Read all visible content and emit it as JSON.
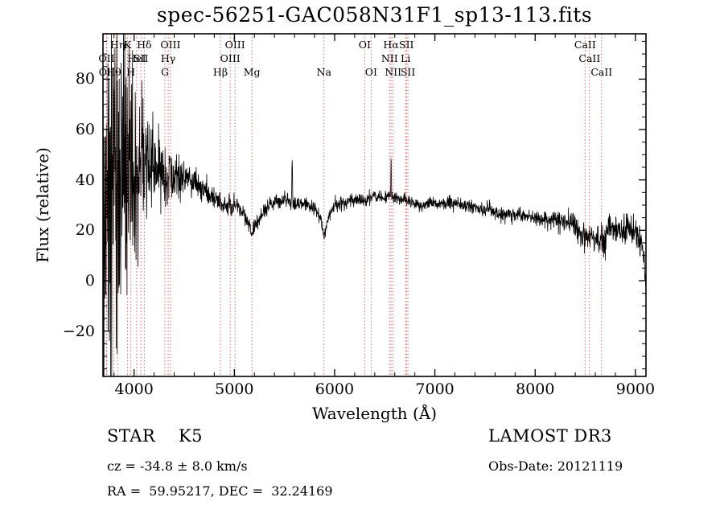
{
  "info": {
    "class_label": "STAR    K5",
    "survey": "LAMOST DR3",
    "cz": "cz = -34.8 ± 8.0 km/s",
    "obs_date": "Obs-Date: 20121119",
    "radec": "RA =  59.95217, DEC =  32.24169"
  },
  "chart_data": {
    "type": "line",
    "title": "spec-56251-GAC058N31F1_sp13-113.fits",
    "xlabel": "Wavelength (Å)",
    "ylabel": "Flux (relative)",
    "xlim": [
      3690,
      9105
    ],
    "ylim": [
      -38,
      98
    ],
    "xticks": [
      4000,
      5000,
      6000,
      7000,
      8000,
      9000
    ],
    "yticks": [
      -20,
      0,
      20,
      40,
      60,
      80
    ],
    "x_minor_step": 200,
    "y_minor_step": 5,
    "grid": false,
    "legend": "none",
    "series_color": "#000000",
    "marker_line_color": "#cc5555",
    "noise_seed": 20121119,
    "wavelength_step": 2.5,
    "data_range": [
      3692,
      9105
    ],
    "line_markers": [
      {
        "wavelength": 3726.0,
        "label": "OII",
        "row": 1
      },
      {
        "wavelength": 3728.8,
        "label": "OII",
        "row": 2
      },
      {
        "wavelength": 3797.9,
        "label": "Hθ",
        "row": 2
      },
      {
        "wavelength": 3835.4,
        "label": "Hη",
        "row": 0
      },
      {
        "wavelength": 3933.7,
        "label": "K",
        "row": 0
      },
      {
        "wavelength": 3968.5,
        "label": "H",
        "row": 2
      },
      {
        "wavelength": 4026.2,
        "label": "HeI",
        "row": 1
      },
      {
        "wavelength": 4068.6,
        "label": "SII",
        "row": 1
      },
      {
        "wavelength": 4101.7,
        "label": "Hδ",
        "row": 0
      },
      {
        "wavelength": 4307.7,
        "label": "G",
        "row": 2
      },
      {
        "wavelength": 4340.5,
        "label": "Hγ",
        "row": 1
      },
      {
        "wavelength": 4363.2,
        "label": "OIII",
        "row": 0
      },
      {
        "wavelength": 4861.3,
        "label": "Hβ",
        "row": 2
      },
      {
        "wavelength": 4958.9,
        "label": "OIII",
        "row": 1
      },
      {
        "wavelength": 5006.8,
        "label": "OIII",
        "row": 0
      },
      {
        "wavelength": 5175.3,
        "label": "Mg",
        "row": 2
      },
      {
        "wavelength": 5893.9,
        "label": "Na",
        "row": 2
      },
      {
        "wavelength": 6300.3,
        "label": "OI",
        "row": 0
      },
      {
        "wavelength": 6363.8,
        "label": "OI",
        "row": 2
      },
      {
        "wavelength": 6548.0,
        "label": "NII",
        "row": 1
      },
      {
        "wavelength": 6562.8,
        "label": "Hα",
        "row": 0
      },
      {
        "wavelength": 6583.4,
        "label": "NII",
        "row": 2
      },
      {
        "wavelength": 6707.8,
        "label": "Li",
        "row": 1
      },
      {
        "wavelength": 6716.4,
        "label": "SII",
        "row": 0
      },
      {
        "wavelength": 6730.8,
        "label": "SII",
        "row": 2
      },
      {
        "wavelength": 8498.0,
        "label": "CaII",
        "row": 0
      },
      {
        "wavelength": 8542.1,
        "label": "CaII",
        "row": 1
      },
      {
        "wavelength": 8662.1,
        "label": "CaII",
        "row": 2
      }
    ],
    "continuum": [
      [
        3700,
        22
      ],
      [
        3760,
        30
      ],
      [
        3820,
        34
      ],
      [
        3900,
        38
      ],
      [
        3980,
        42
      ],
      [
        4060,
        46
      ],
      [
        4140,
        47
      ],
      [
        4220,
        44
      ],
      [
        4300,
        42
      ],
      [
        4360,
        42
      ],
      [
        4450,
        41
      ],
      [
        4550,
        40
      ],
      [
        4650,
        38
      ],
      [
        4750,
        34
      ],
      [
        4861,
        30
      ],
      [
        4950,
        29
      ],
      [
        5010,
        30
      ],
      [
        5080,
        28
      ],
      [
        5140,
        23
      ],
      [
        5175,
        19
      ],
      [
        5220,
        23
      ],
      [
        5300,
        28
      ],
      [
        5400,
        31
      ],
      [
        5500,
        32
      ],
      [
        5600,
        31
      ],
      [
        5700,
        30
      ],
      [
        5800,
        29
      ],
      [
        5860,
        25
      ],
      [
        5894,
        17
      ],
      [
        5930,
        24
      ],
      [
        6000,
        30
      ],
      [
        6100,
        31
      ],
      [
        6200,
        32
      ],
      [
        6300,
        32
      ],
      [
        6400,
        33
      ],
      [
        6500,
        33
      ],
      [
        6600,
        33
      ],
      [
        6700,
        32
      ],
      [
        6800,
        31
      ],
      [
        6870,
        29
      ],
      [
        6950,
        31
      ],
      [
        7100,
        30.5
      ],
      [
        7250,
        30
      ],
      [
        7400,
        29
      ],
      [
        7550,
        28
      ],
      [
        7650,
        26.5
      ],
      [
        7800,
        26
      ],
      [
        7950,
        25
      ],
      [
        8100,
        24
      ],
      [
        8250,
        23.5
      ],
      [
        8380,
        22.5
      ],
      [
        8450,
        19
      ],
      [
        8500,
        16
      ],
      [
        8550,
        19
      ],
      [
        8620,
        15
      ],
      [
        8670,
        14
      ],
      [
        8730,
        20
      ],
      [
        8800,
        21
      ],
      [
        8870,
        19
      ],
      [
        8930,
        22
      ],
      [
        9000,
        20
      ],
      [
        9050,
        17
      ],
      [
        9080,
        10
      ],
      [
        9105,
        1
      ]
    ],
    "noise_sigma": [
      [
        3700,
        46
      ],
      [
        3780,
        44
      ],
      [
        3860,
        38
      ],
      [
        3940,
        28
      ],
      [
        4000,
        22
      ],
      [
        4060,
        16
      ],
      [
        4130,
        11
      ],
      [
        4200,
        8
      ],
      [
        4280,
        6
      ],
      [
        4380,
        5
      ],
      [
        4500,
        3
      ],
      [
        4650,
        2.4
      ],
      [
        4800,
        2
      ],
      [
        5000,
        1.8
      ],
      [
        5200,
        1.6
      ],
      [
        5400,
        1.5
      ],
      [
        5600,
        1.4
      ],
      [
        5900,
        1.3
      ],
      [
        6300,
        1.2
      ],
      [
        6600,
        1.2
      ],
      [
        7000,
        1.2
      ],
      [
        7400,
        1.3
      ],
      [
        7700,
        1.5
      ],
      [
        8000,
        1.6
      ],
      [
        8300,
        2
      ],
      [
        8500,
        2.8
      ],
      [
        8700,
        3
      ],
      [
        8900,
        2.6
      ],
      [
        9000,
        2.8
      ],
      [
        9105,
        3.5
      ]
    ],
    "emission_spikes": [
      {
        "center": 4358,
        "amplitude": 15,
        "width": 3
      },
      {
        "center": 5577,
        "amplitude": 18,
        "width": 3
      },
      {
        "center": 6563,
        "amplitude": 16,
        "width": 3
      }
    ]
  }
}
